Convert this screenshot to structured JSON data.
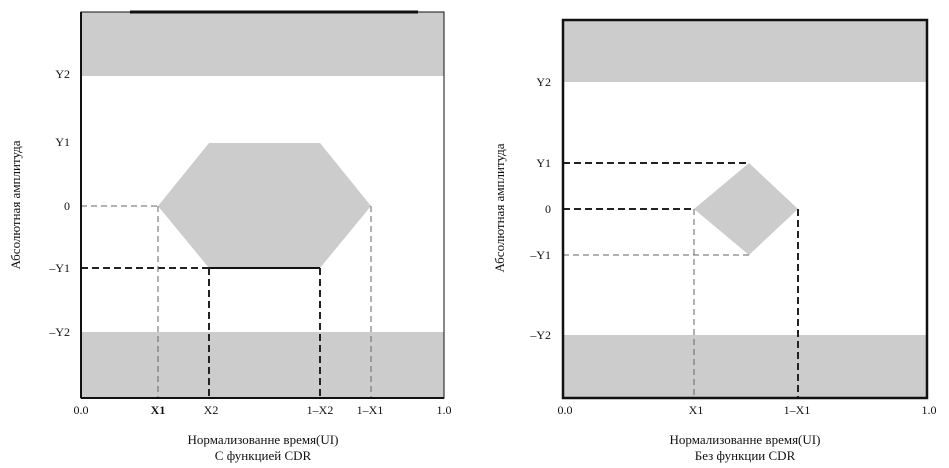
{
  "diagrams": [
    {
      "y_axis_title": "Абсолютная амплитуда",
      "y_ticks": [
        "Y2",
        "Y1",
        "0",
        "–Y1",
        "–Y2"
      ],
      "x_ticks": [
        "0.0",
        "X1",
        "X2",
        "1–X2",
        "1–X1",
        "1.0"
      ],
      "x_axis_title": "Нормализованне время(UI)",
      "caption": "С функцией CDR"
    },
    {
      "y_axis_title": "Абсолютная амплитуда",
      "y_ticks": [
        "Y2",
        "Y1",
        "0",
        "–Y1",
        "–Y2"
      ],
      "x_ticks": [
        "0.0",
        "X1",
        "1–X1",
        "1.0"
      ],
      "x_axis_title": "Нормализованне время(UI)",
      "caption": "Без функции CDR"
    }
  ],
  "colors": {
    "mask_fill": "#cccccc",
    "frame": "#111111",
    "background": "#ffffff"
  }
}
